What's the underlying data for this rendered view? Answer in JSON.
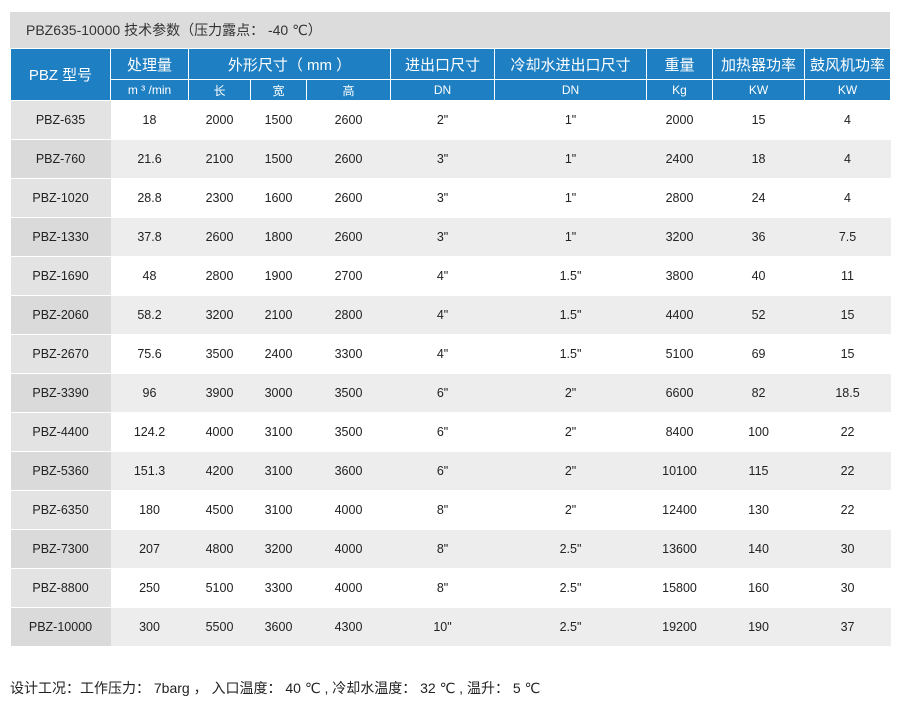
{
  "title": "PBZ635-10000 技术参数（压力露点： -40 ℃）",
  "header": {
    "model": "PBZ  型号",
    "capacity": "处理量",
    "capacity_unit": "m ³ /min",
    "dimensions": "外形尺寸（  mm  ）",
    "length": "长",
    "width": "宽",
    "height": "高",
    "inlet": "进出口尺寸",
    "inlet_unit": "DN",
    "cooling": "冷却水进出口尺寸",
    "cooling_unit": "DN",
    "weight": "重量",
    "weight_unit": "Kg",
    "heater": "加热器功率",
    "heater_unit": "KW",
    "blower": "鼓风机功率",
    "blower_unit": "KW"
  },
  "rows": [
    [
      "PBZ-635",
      "18",
      "2000",
      "1500",
      "2600",
      "2\"",
      "1\"",
      "2000",
      "15",
      "4"
    ],
    [
      "PBZ-760",
      "21.6",
      "2100",
      "1500",
      "2600",
      "3\"",
      "1\"",
      "2400",
      "18",
      "4"
    ],
    [
      "PBZ-1020",
      "28.8",
      "2300",
      "1600",
      "2600",
      "3\"",
      "1\"",
      "2800",
      "24",
      "4"
    ],
    [
      "PBZ-1330",
      "37.8",
      "2600",
      "1800",
      "2600",
      "3\"",
      "1\"",
      "3200",
      "36",
      "7.5"
    ],
    [
      "PBZ-1690",
      "48",
      "2800",
      "1900",
      "2700",
      "4\"",
      "1.5\"",
      "3800",
      "40",
      "11"
    ],
    [
      "PBZ-2060",
      "58.2",
      "3200",
      "2100",
      "2800",
      "4\"",
      "1.5\"",
      "4400",
      "52",
      "15"
    ],
    [
      "PBZ-2670",
      "75.6",
      "3500",
      "2400",
      "3300",
      "4\"",
      "1.5\"",
      "5100",
      "69",
      "15"
    ],
    [
      "PBZ-3390",
      "96",
      "3900",
      "3000",
      "3500",
      "6\"",
      "2\"",
      "6600",
      "82",
      "18.5"
    ],
    [
      "PBZ-4400",
      "124.2",
      "4000",
      "3100",
      "3500",
      "6\"",
      "2\"",
      "8400",
      "100",
      "22"
    ],
    [
      "PBZ-5360",
      "151.3",
      "4200",
      "3100",
      "3600",
      "6\"",
      "2\"",
      "10100",
      "115",
      "22"
    ],
    [
      "PBZ-6350",
      "180",
      "4500",
      "3100",
      "4000",
      "8\"",
      "2\"",
      "12400",
      "130",
      "22"
    ],
    [
      "PBZ-7300",
      "207",
      "4800",
      "3200",
      "4000",
      "8\"",
      "2.5\"",
      "13600",
      "140",
      "30"
    ],
    [
      "PBZ-8800",
      "250",
      "5100",
      "3300",
      "4000",
      "8\"",
      "2.5\"",
      "15800",
      "160",
      "30"
    ],
    [
      "PBZ-10000",
      "300",
      "5500",
      "3600",
      "4300",
      "10\"",
      "2.5\"",
      "19200",
      "190",
      "37"
    ]
  ],
  "footer": "设计工况：工作压力： 7barg  ，  入口温度： 40 ℃ , 冷却水温度： 32 ℃ , 温升： 5 ℃"
}
